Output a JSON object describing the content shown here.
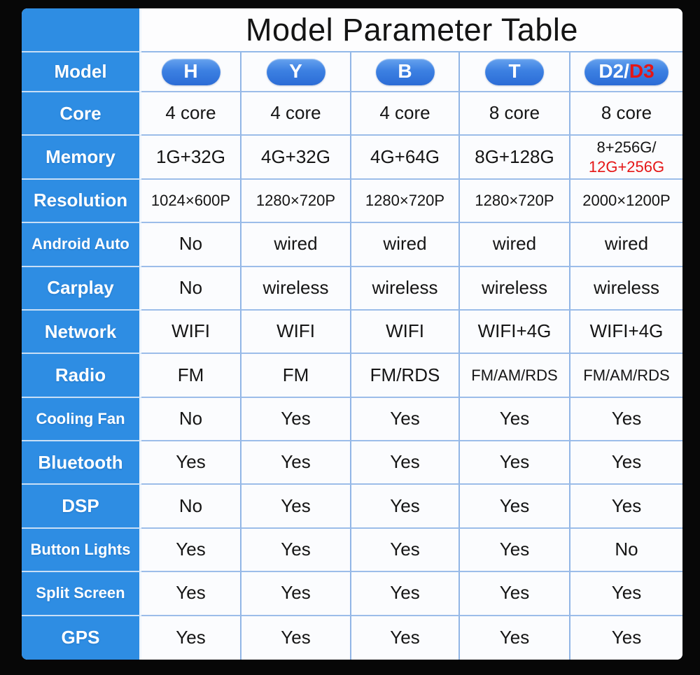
{
  "title": "Model Parameter Table",
  "columns_header": {
    "label": "Model",
    "models": [
      {
        "segments": [
          {
            "text": "H",
            "color": "#ffffff"
          }
        ]
      },
      {
        "segments": [
          {
            "text": "Y",
            "color": "#ffffff"
          }
        ]
      },
      {
        "segments": [
          {
            "text": "B",
            "color": "#ffffff"
          }
        ]
      },
      {
        "segments": [
          {
            "text": "T",
            "color": "#ffffff"
          }
        ]
      },
      {
        "segments": [
          {
            "text": "D2/",
            "color": "#ffffff"
          },
          {
            "text": "D3",
            "color": "#e51616"
          }
        ]
      }
    ]
  },
  "rows": [
    {
      "label": "Core",
      "values": [
        {
          "text": "4 core"
        },
        {
          "text": "4 core"
        },
        {
          "text": "4 core"
        },
        {
          "text": "8 core"
        },
        {
          "text": "8 core"
        }
      ]
    },
    {
      "label": "Memory",
      "values": [
        {
          "text": "1G+32G"
        },
        {
          "text": "4G+32G"
        },
        {
          "text": "4G+64G"
        },
        {
          "text": "8G+128G"
        },
        {
          "lines": [
            {
              "text": "8+256G/",
              "color": "#151515"
            },
            {
              "text": "12G+256G",
              "color": "#e51616"
            }
          ]
        }
      ]
    },
    {
      "label": "Resolution",
      "values": [
        {
          "text": "1024×600P"
        },
        {
          "text": "1280×720P"
        },
        {
          "text": "1280×720P"
        },
        {
          "text": "1280×720P"
        },
        {
          "text": "2000×1200P"
        }
      ]
    },
    {
      "label": "Android Auto",
      "values": [
        {
          "text": "No"
        },
        {
          "text": "wired"
        },
        {
          "text": "wired"
        },
        {
          "text": "wired"
        },
        {
          "text": "wired"
        }
      ]
    },
    {
      "label": "Carplay",
      "values": [
        {
          "text": "No"
        },
        {
          "text": "wireless"
        },
        {
          "text": "wireless"
        },
        {
          "text": "wireless"
        },
        {
          "text": "wireless"
        }
      ]
    },
    {
      "label": "Network",
      "values": [
        {
          "text": "WIFI"
        },
        {
          "text": "WIFI"
        },
        {
          "text": "WIFI"
        },
        {
          "text": "WIFI+4G"
        },
        {
          "text": "WIFI+4G"
        }
      ]
    },
    {
      "label": "Radio",
      "values": [
        {
          "text": "FM"
        },
        {
          "text": "FM"
        },
        {
          "text": "FM/RDS"
        },
        {
          "text": "FM/AM/RDS"
        },
        {
          "text": "FM/AM/RDS"
        }
      ]
    },
    {
      "label": "Cooling Fan",
      "values": [
        {
          "text": "No"
        },
        {
          "text": "Yes"
        },
        {
          "text": "Yes"
        },
        {
          "text": "Yes"
        },
        {
          "text": "Yes"
        }
      ]
    },
    {
      "label": "Bluetooth",
      "values": [
        {
          "text": "Yes"
        },
        {
          "text": "Yes"
        },
        {
          "text": "Yes"
        },
        {
          "text": "Yes"
        },
        {
          "text": "Yes"
        }
      ]
    },
    {
      "label": "DSP",
      "values": [
        {
          "text": "No"
        },
        {
          "text": "Yes"
        },
        {
          "text": "Yes"
        },
        {
          "text": "Yes"
        },
        {
          "text": "Yes"
        }
      ]
    },
    {
      "label": "Button Lights",
      "values": [
        {
          "text": "Yes"
        },
        {
          "text": "Yes"
        },
        {
          "text": "Yes"
        },
        {
          "text": "Yes"
        },
        {
          "text": "No"
        }
      ]
    },
    {
      "label": "Split Screen",
      "values": [
        {
          "text": "Yes"
        },
        {
          "text": "Yes"
        },
        {
          "text": "Yes"
        },
        {
          "text": "Yes"
        },
        {
          "text": "Yes"
        }
      ]
    },
    {
      "label": "GPS",
      "values": [
        {
          "text": "Yes"
        },
        {
          "text": "Yes"
        },
        {
          "text": "Yes"
        },
        {
          "text": "Yes"
        },
        {
          "text": "Yes"
        }
      ]
    }
  ],
  "colors": {
    "label_blue": "#2e8de3",
    "pill_blue_top": "#66a2ee",
    "pill_blue_bottom": "#2b6cd6",
    "accent_red": "#e51616",
    "border_blue": "#92b6e6",
    "cell_white": "#fbfcfe",
    "frame_black": "#070707"
  },
  "chart_data": {
    "type": "table",
    "title": "Model Parameter Table",
    "columns": [
      "Model",
      "H",
      "Y",
      "B",
      "T",
      "D2/D3"
    ],
    "rows": [
      [
        "Core",
        "4 core",
        "4 core",
        "4 core",
        "8 core",
        "8 core"
      ],
      [
        "Memory",
        "1G+32G",
        "4G+32G",
        "4G+64G",
        "8G+128G",
        "8+256G/ 12G+256G"
      ],
      [
        "Resolution",
        "1024×600P",
        "1280×720P",
        "1280×720P",
        "1280×720P",
        "2000×1200P"
      ],
      [
        "Android Auto",
        "No",
        "wired",
        "wired",
        "wired",
        "wired"
      ],
      [
        "Carplay",
        "No",
        "wireless",
        "wireless",
        "wireless",
        "wireless"
      ],
      [
        "Network",
        "WIFI",
        "WIFI",
        "WIFI",
        "WIFI+4G",
        "WIFI+4G"
      ],
      [
        "Radio",
        "FM",
        "FM",
        "FM/RDS",
        "FM/AM/RDS",
        "FM/AM/RDS"
      ],
      [
        "Cooling Fan",
        "No",
        "Yes",
        "Yes",
        "Yes",
        "Yes"
      ],
      [
        "Bluetooth",
        "Yes",
        "Yes",
        "Yes",
        "Yes",
        "Yes"
      ],
      [
        "DSP",
        "No",
        "Yes",
        "Yes",
        "Yes",
        "Yes"
      ],
      [
        "Button Lights",
        "Yes",
        "Yes",
        "Yes",
        "Yes",
        "No"
      ],
      [
        "Split Screen",
        "Yes",
        "Yes",
        "Yes",
        "Yes",
        "Yes"
      ],
      [
        "GPS",
        "Yes",
        "Yes",
        "Yes",
        "Yes",
        "Yes"
      ]
    ]
  }
}
